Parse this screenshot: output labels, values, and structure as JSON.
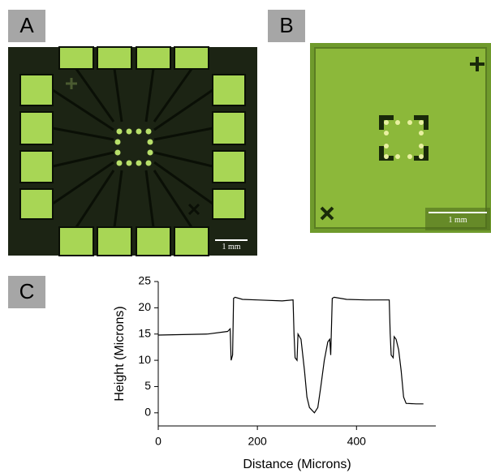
{
  "panels": [
    {
      "label": "A",
      "scale_bar": "1 mm"
    },
    {
      "label": "B",
      "scale_bar": "1 mm"
    },
    {
      "label": "C"
    }
  ],
  "chart_data": {
    "type": "line",
    "x_label": "Distance (Microns)",
    "y_label": "Height (Microns)",
    "xlim": [
      0,
      560
    ],
    "ylim": [
      -2.5,
      25
    ],
    "xticks": [
      0,
      200,
      400
    ],
    "yticks": [
      0,
      5,
      10,
      15,
      20,
      25
    ],
    "series": [
      {
        "color": "#000000",
        "x": [
          0,
          100,
          140,
          145,
          147,
          150,
          152,
          155,
          170,
          200,
          250,
          272,
          274,
          276,
          280,
          282,
          288,
          295,
          300,
          305,
          315,
          322,
          328,
          335,
          342,
          346,
          348,
          351,
          355,
          380,
          420,
          466,
          468,
          470,
          474,
          476,
          480,
          485,
          490,
          495,
          500,
          520,
          535
        ],
        "values": [
          14.8,
          15,
          15.5,
          16,
          10,
          11,
          21.8,
          22,
          21.6,
          21.5,
          21.3,
          21.5,
          15,
          10.5,
          10,
          15,
          14,
          8,
          3,
          1,
          0,
          1,
          5,
          10,
          13.5,
          14,
          11,
          21.8,
          22,
          21.6,
          21.5,
          21.5,
          15,
          11,
          10.5,
          14.5,
          14,
          12,
          8,
          3,
          1.8,
          1.7,
          1.7
        ]
      }
    ]
  }
}
